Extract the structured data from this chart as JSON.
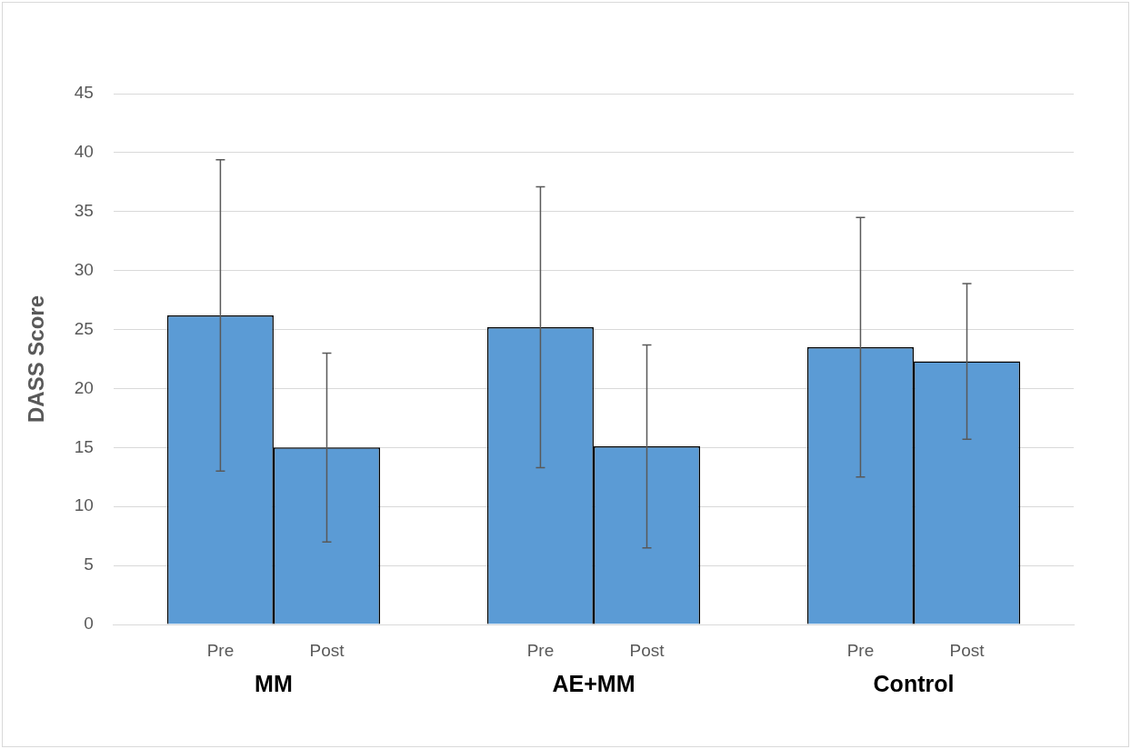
{
  "chart_data": {
    "type": "bar",
    "ylabel": "DASS Score",
    "categories": [
      "MM",
      "AE+MM",
      "Control"
    ],
    "series": [
      {
        "name": "Pre",
        "color": "#5b9bd5",
        "values": [
          26.2,
          25.2,
          23.5
        ],
        "errors": [
          13.2,
          11.9,
          11
        ]
      },
      {
        "name": "Post",
        "color": "#5b9bd5",
        "values": [
          15,
          15.1,
          22.3
        ],
        "errors": [
          8,
          8.6,
          6.6
        ]
      }
    ],
    "ylim": [
      0,
      45
    ],
    "yticks": [
      0,
      5,
      10,
      15,
      20,
      25,
      30,
      35,
      40,
      45
    ],
    "grid": "y",
    "legend": false
  }
}
